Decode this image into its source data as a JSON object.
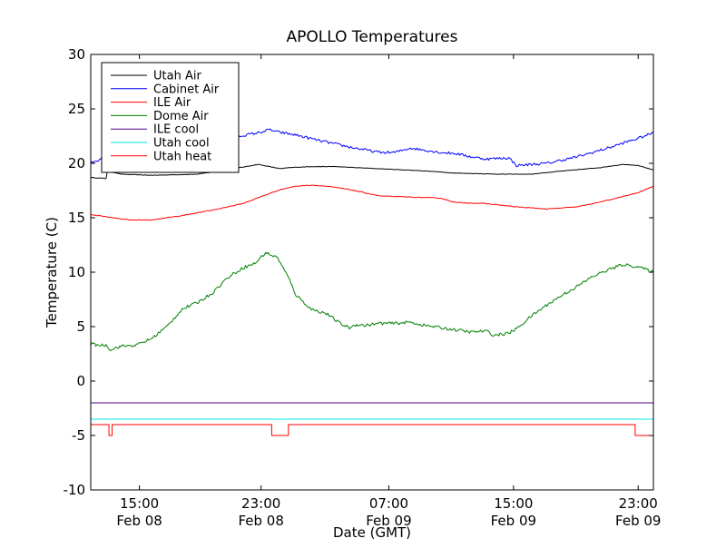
{
  "chart_data": {
    "type": "line",
    "title": "APOLLO Temperatures",
    "xlabel": "Date (GMT)",
    "ylabel": "Temperature (C)",
    "x_unit": "hours since Feb 08 10:00 GMT",
    "xlim": [
      0,
      37
    ],
    "ylim": [
      -10,
      30
    ],
    "yticks": [
      -10,
      -5,
      0,
      5,
      10,
      15,
      20,
      25,
      30
    ],
    "xticks": [
      {
        "x": 3.2,
        "time": "15:00",
        "date": "Feb 08"
      },
      {
        "x": 11.2,
        "time": "23:00",
        "date": "Feb 08"
      },
      {
        "x": 19.6,
        "time": "07:00",
        "date": "Feb 09"
      },
      {
        "x": 27.8,
        "time": "15:00",
        "date": "Feb 09"
      },
      {
        "x": 36.0,
        "time": "23:00",
        "date": "Feb 09"
      }
    ],
    "grid": false,
    "legend_position": "upper-left",
    "series": [
      {
        "name": "Utah Air",
        "color": "#000000",
        "x": [
          0,
          1.0,
          1.1,
          2.0,
          4.0,
          7.0,
          9.0,
          11.0,
          12.5,
          13.0,
          14.5,
          16.0,
          19.0,
          22.0,
          24.0,
          27.0,
          29.0,
          31.0,
          33.5,
          35.0,
          36.0,
          37.0
        ],
        "y": [
          18.7,
          18.6,
          19.3,
          19.0,
          18.9,
          19.0,
          19.4,
          19.9,
          19.5,
          19.6,
          19.7,
          19.7,
          19.5,
          19.3,
          19.1,
          19.0,
          19.0,
          19.3,
          19.6,
          19.9,
          19.8,
          19.4
        ]
      },
      {
        "name": "Cabinet Air",
        "color": "#0000ff",
        "x": [
          0,
          0.5,
          1.0,
          1.2,
          2.0,
          3.0,
          5.0,
          7.0,
          9.0,
          11.0,
          11.8,
          12.2,
          13.5,
          15.0,
          17.0,
          19.0,
          20.0,
          21.0,
          22.0,
          23.0,
          24.0,
          25.0,
          26.0,
          27.5,
          28.0,
          30.0,
          32.0,
          34.0,
          36.0,
          37.0
        ],
        "y": [
          20.0,
          20.2,
          21.0,
          19.4,
          19.6,
          19.8,
          20.6,
          21.6,
          22.3,
          22.8,
          23.1,
          22.9,
          22.6,
          22.1,
          21.5,
          21.0,
          21.0,
          21.4,
          21.2,
          21.0,
          20.9,
          20.6,
          20.4,
          20.5,
          19.8,
          20.0,
          20.6,
          21.4,
          22.3,
          22.8
        ]
      },
      {
        "name": "ILE Air",
        "color": "#ff0000",
        "x": [
          0,
          1.0,
          2.5,
          4.0,
          6.0,
          8.0,
          10.0,
          11.5,
          12.5,
          13.5,
          14.5,
          15.5,
          17.0,
          19.0,
          21.0,
          23.0,
          24.0,
          26.0,
          28.0,
          30.0,
          32.0,
          34.0,
          36.0,
          37.0
        ],
        "y": [
          15.3,
          15.1,
          14.8,
          14.8,
          15.2,
          15.7,
          16.3,
          17.1,
          17.6,
          17.9,
          18.0,
          17.9,
          17.6,
          17.0,
          16.9,
          16.8,
          16.4,
          16.3,
          16.0,
          15.8,
          16.0,
          16.6,
          17.3,
          17.9
        ]
      },
      {
        "name": "Dome Air",
        "color": "#008000",
        "x": [
          0,
          0.5,
          1.0,
          1.3,
          2.0,
          3.0,
          4.0,
          5.0,
          6.0,
          7.0,
          8.0,
          9.0,
          10.0,
          10.8,
          11.5,
          12.0,
          12.3,
          13.0,
          13.5,
          14.5,
          15.5,
          16.5,
          17.0,
          17.5,
          18.0,
          19.0,
          20.0,
          21.0,
          22.0,
          23.0,
          24.0,
          25.0,
          26.0,
          26.5,
          27.0,
          27.5,
          28.0,
          29.0,
          30.0,
          31.0,
          32.0,
          33.0,
          34.0,
          35.0,
          36.0,
          37.0
        ],
        "y": [
          3.4,
          3.3,
          3.3,
          2.9,
          3.2,
          3.3,
          3.9,
          5.0,
          6.6,
          7.2,
          8.1,
          9.5,
          10.4,
          10.8,
          11.8,
          11.5,
          11.3,
          9.5,
          7.9,
          6.6,
          6.2,
          5.2,
          4.9,
          5.2,
          5.1,
          5.3,
          5.3,
          5.4,
          5.1,
          4.9,
          4.7,
          4.5,
          4.6,
          4.2,
          4.3,
          4.4,
          4.8,
          6.0,
          7.0,
          7.9,
          8.7,
          9.6,
          10.2,
          10.7,
          10.5,
          10.0
        ]
      },
      {
        "name": "ILE cool",
        "color": "#4b0082",
        "x": [
          0,
          37
        ],
        "y": [
          -2.0,
          -2.0
        ]
      },
      {
        "name": "Utah cool",
        "color": "#00e5e5",
        "x": [
          0,
          37
        ],
        "y": [
          -3.5,
          -3.5
        ]
      },
      {
        "name": "Utah heat",
        "color": "#ff0000",
        "x": [
          0,
          1.2,
          1.2,
          1.4,
          1.4,
          11.9,
          11.9,
          13.0,
          13.0,
          35.8,
          35.8,
          37.0
        ],
        "y": [
          -4.0,
          -4.0,
          -5.0,
          -5.0,
          -4.0,
          -4.0,
          -5.0,
          -5.0,
          -4.0,
          -4.0,
          -5.0,
          -5.0
        ]
      }
    ]
  }
}
